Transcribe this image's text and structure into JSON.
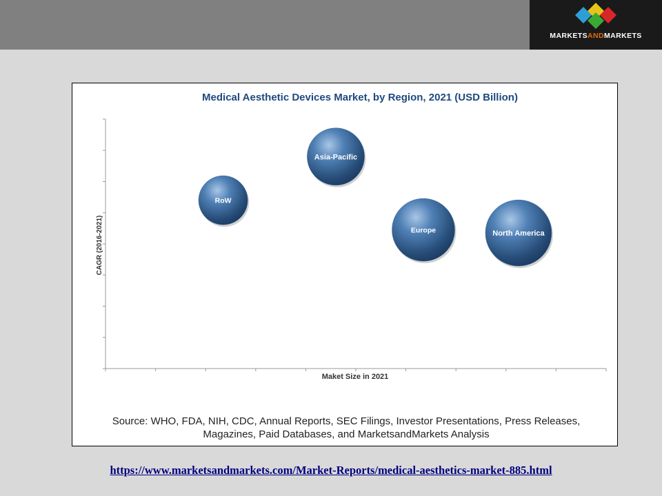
{
  "brand": {
    "logo_text_1": "MARKETS",
    "logo_text_and": "AND",
    "logo_text_2": "MARKETS",
    "logo_colors": [
      "#2e9fd6",
      "#e8c31b",
      "#d9262b",
      "#3aaa35",
      "#1f5fa6"
    ]
  },
  "chart_data": {
    "type": "bubble",
    "title": "Medical Aesthetic Devices Market, by Region, 2021 (USD Billion)",
    "xlabel": "Maket Size in 2021",
    "ylabel": "CAGR (2016-2021)",
    "x_ticks": 10,
    "y_ticks": 8,
    "grid": false,
    "bubble_color": "#3f6c9d",
    "series": [
      {
        "name": "RoW",
        "x": 2.35,
        "y": 5.4,
        "size": 0.55
      },
      {
        "name": "Asia-Pacific",
        "x": 4.6,
        "y": 6.8,
        "size": 0.75
      },
      {
        "name": "Europe",
        "x": 6.35,
        "y": 4.45,
        "size": 0.9
      },
      {
        "name": "North America",
        "x": 8.25,
        "y": 4.35,
        "size": 1.0
      }
    ],
    "xlim": [
      0,
      10
    ],
    "ylim": [
      0,
      8
    ]
  },
  "source": "Source: WHO, FDA, NIH, CDC, Annual Reports, SEC Filings, Investor Presentations, Press Releases, Magazines, Paid Databases, and MarketsandMarkets Analysis",
  "url": "https://www.marketsandmarkets.com/Market-Reports/medical-aesthetics-market-885.html"
}
